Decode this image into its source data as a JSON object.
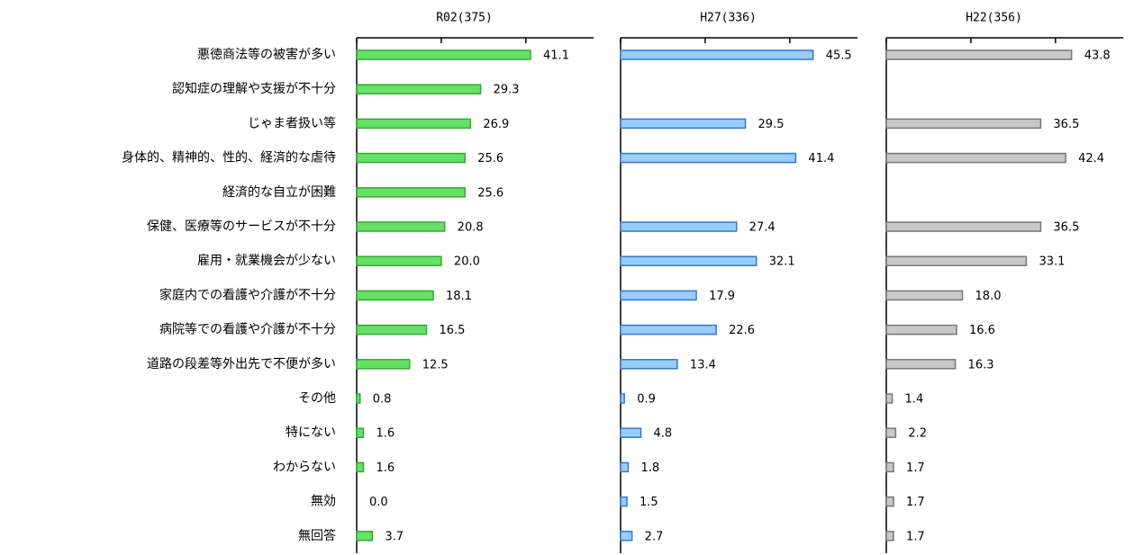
{
  "chart_data": {
    "type": "bar",
    "orientation": "horizontal",
    "categories": [
      "悪徳商法等の被害が多い",
      "認知症の理解や支援が不十分",
      "じゃま者扱い等",
      "身体的、精神的、性的、経済的な虐待",
      "経済的な自立が困難",
      "保健、医療等のサービスが不十分",
      "雇用・就業機会が少ない",
      "家庭内での看護や介護が不十分",
      "病院等での看護や介護が不十分",
      "道路の段差等外出先で不便が多い",
      "その他",
      "特にない",
      "わからない",
      "無効",
      "無回答"
    ],
    "series": [
      {
        "name": "R02(375)",
        "color": "#66e066",
        "values": [
          41.1,
          29.3,
          26.9,
          25.6,
          25.6,
          20.8,
          20,
          18.1,
          16.5,
          12.5,
          0.8,
          1.6,
          1.6,
          0,
          3.7
        ],
        "value_labels": [
          "41.1",
          "29.3",
          "26.9",
          "25.6",
          "25.6",
          "20.8",
          "20.0",
          "18.1",
          "16.5",
          "12.5",
          "0.8",
          "1.6",
          "1.6",
          "0.0",
          "3.7"
        ]
      },
      {
        "name": "H27(336)",
        "color": "#99ccff",
        "values": [
          45.5,
          null,
          29.5,
          41.4,
          null,
          27.4,
          32.1,
          17.9,
          22.6,
          13.4,
          0.9,
          4.8,
          1.8,
          1.5,
          2.7
        ],
        "value_labels": [
          "45.5",
          null,
          "29.5",
          "41.4",
          null,
          "27.4",
          "32.1",
          "17.9",
          "22.6",
          "13.4",
          "0.9",
          "4.8",
          "1.8",
          "1.5",
          "2.7"
        ]
      },
      {
        "name": "H22(356)",
        "color": "#c8c8c8",
        "values": [
          43.8,
          null,
          36.5,
          42.4,
          null,
          36.5,
          33.1,
          18,
          16.6,
          16.3,
          1.4,
          2.2,
          1.7,
          1.7,
          1.7
        ],
        "value_labels": [
          "43.8",
          null,
          "36.5",
          "42.4",
          null,
          "36.5",
          "33.1",
          "18.0",
          "16.6",
          "16.3",
          "1.4",
          "2.2",
          "1.7",
          "1.7",
          "1.7"
        ]
      }
    ],
    "xlim": [
      0,
      56
    ],
    "xticks": [
      0,
      20,
      40
    ]
  }
}
